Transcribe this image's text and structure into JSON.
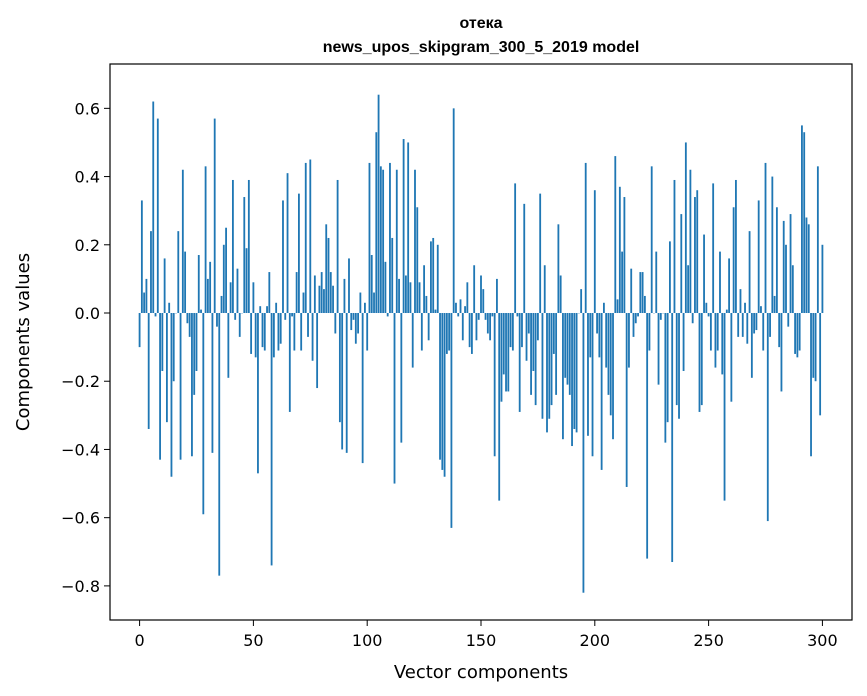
{
  "chart_data": {
    "type": "bar",
    "title_line1": "отека",
    "title_line2": "news_upos_skipgram_300_5_2019 model",
    "xlabel": "Vector components",
    "ylabel": "Components values",
    "xlim": [
      -13,
      313
    ],
    "ylim": [
      -0.9,
      0.73
    ],
    "xticks": [
      0,
      50,
      100,
      150,
      200,
      250,
      300
    ],
    "xtick_labels": [
      "0",
      "50",
      "100",
      "150",
      "200",
      "250",
      "300"
    ],
    "yticks": [
      -0.8,
      -0.6,
      -0.4,
      -0.2,
      0.0,
      0.2,
      0.4,
      0.6
    ],
    "ytick_labels": [
      "−0.8",
      "−0.6",
      "−0.4",
      "−0.2",
      "0.0",
      "0.2",
      "0.4",
      "0.6"
    ],
    "bar_color": "#1f77b4",
    "grid": false,
    "values": [
      -0.1,
      0.33,
      0.06,
      0.1,
      -0.34,
      0.24,
      0.62,
      -0.01,
      0.57,
      -0.43,
      -0.17,
      0.16,
      -0.32,
      0.03,
      -0.48,
      -0.2,
      0.0,
      0.24,
      -0.43,
      0.42,
      0.18,
      -0.03,
      -0.07,
      -0.42,
      -0.24,
      -0.17,
      0.17,
      0.01,
      -0.59,
      0.43,
      0.1,
      0.15,
      -0.41,
      0.57,
      -0.04,
      -0.77,
      0.05,
      0.2,
      0.25,
      -0.19,
      0.09,
      0.39,
      -0.02,
      0.13,
      -0.07,
      0.0,
      0.34,
      0.19,
      0.39,
      -0.12,
      0.09,
      -0.13,
      -0.47,
      0.02,
      -0.1,
      -0.11,
      0.02,
      0.12,
      -0.74,
      -0.13,
      0.03,
      -0.11,
      -0.09,
      0.33,
      -0.02,
      0.41,
      -0.29,
      -0.01,
      -0.11,
      0.12,
      0.35,
      -0.11,
      0.06,
      0.44,
      -0.07,
      0.45,
      -0.14,
      0.11,
      -0.22,
      0.08,
      0.12,
      0.07,
      0.26,
      0.22,
      0.12,
      0.08,
      -0.06,
      0.39,
      -0.32,
      -0.4,
      0.1,
      -0.41,
      0.16,
      -0.05,
      -0.02,
      -0.09,
      -0.06,
      0.06,
      -0.44,
      0.03,
      -0.11,
      0.44,
      0.17,
      0.06,
      0.53,
      0.64,
      0.43,
      0.42,
      0.15,
      -0.01,
      0.44,
      0.22,
      -0.5,
      0.42,
      0.1,
      -0.38,
      0.51,
      0.11,
      0.5,
      0.09,
      -0.16,
      0.42,
      0.31,
      0.09,
      -0.11,
      0.14,
      0.05,
      -0.08,
      0.21,
      0.22,
      0.01,
      0.2,
      -0.43,
      -0.46,
      -0.48,
      -0.12,
      -0.11,
      -0.63,
      0.6,
      0.03,
      -0.01,
      0.04,
      -0.08,
      0.02,
      0.09,
      -0.1,
      -0.12,
      0.14,
      -0.08,
      -0.02,
      0.11,
      0.07,
      -0.02,
      -0.06,
      -0.08,
      -0.01,
      -0.42,
      0.1,
      -0.55,
      -0.26,
      -0.18,
      -0.23,
      -0.23,
      -0.1,
      -0.11,
      0.38,
      -0.01,
      -0.29,
      -0.1,
      0.32,
      -0.14,
      -0.06,
      -0.24,
      -0.17,
      -0.27,
      -0.08,
      0.35,
      -0.31,
      0.14,
      -0.35,
      -0.31,
      -0.27,
      -0.12,
      -0.24,
      0.26,
      0.11,
      -0.37,
      -0.19,
      -0.21,
      -0.24,
      -0.39,
      -0.34,
      -0.35,
      0.0,
      0.07,
      -0.82,
      0.44,
      -0.36,
      -0.13,
      -0.42,
      0.36,
      -0.06,
      -0.13,
      -0.46,
      0.03,
      -0.16,
      -0.24,
      -0.3,
      -0.37,
      0.46,
      0.04,
      0.37,
      0.18,
      0.34,
      -0.51,
      -0.16,
      0.13,
      -0.07,
      -0.03,
      -0.01,
      0.12,
      0.12,
      0.05,
      -0.72,
      -0.11,
      0.43,
      0.0,
      0.18,
      -0.21,
      -0.02,
      0.0,
      -0.38,
      -0.32,
      0.21,
      -0.73,
      0.39,
      -0.27,
      -0.31,
      0.29,
      -0.17,
      0.5,
      0.14,
      0.42,
      -0.03,
      0.34,
      0.36,
      -0.29,
      -0.27,
      0.23,
      0.03,
      -0.01,
      -0.11,
      0.38,
      -0.16,
      -0.11,
      0.18,
      -0.18,
      -0.55,
      0.01,
      0.16,
      -0.26,
      0.31,
      0.39,
      -0.07,
      0.07,
      -0.07,
      0.03,
      -0.09,
      0.24,
      -0.19,
      -0.06,
      -0.05,
      0.33,
      0.02,
      -0.11,
      0.44,
      -0.61,
      -0.07,
      0.4,
      0.05,
      0.31,
      -0.1,
      -0.23,
      0.27,
      0.2,
      -0.04,
      0.29,
      0.14,
      -0.12,
      -0.13,
      -0.11,
      0.55,
      0.53,
      0.28,
      0.26,
      -0.42,
      -0.19,
      -0.2,
      0.43,
      -0.3,
      0.2
    ]
  }
}
